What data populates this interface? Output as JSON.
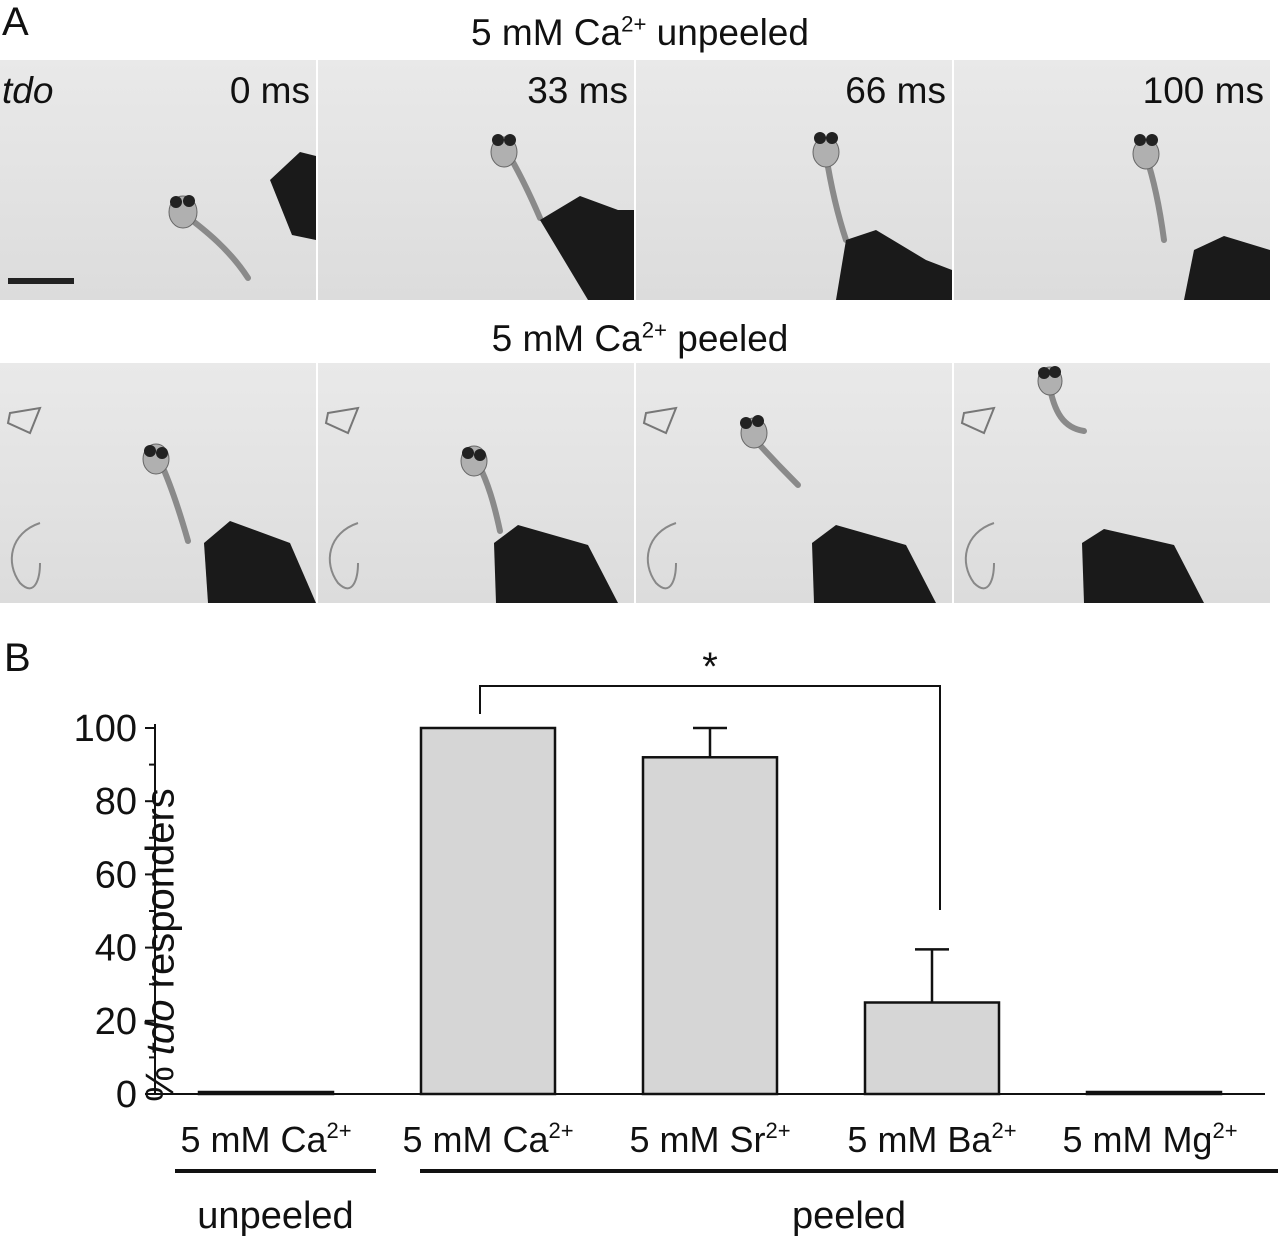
{
  "panel_a": {
    "letter": "A",
    "strain": "tdo",
    "rows": [
      {
        "title_pre": "5 mM Ca",
        "title_sup": "2+",
        "title_post": " unpeeled",
        "frames": [
          "0 ms",
          "33 ms",
          "66 ms",
          "100 ms"
        ]
      },
      {
        "title_pre": "5 mM Ca",
        "title_sup": "2+",
        "title_post": " peeled",
        "frames": [
          "",
          "",
          "",
          ""
        ]
      }
    ]
  },
  "chart_data": {
    "panel_letter": "B",
    "type": "bar",
    "categories": [
      {
        "pre": "5 mM Ca",
        "sup": "2+"
      },
      {
        "pre": "5 mM Ca",
        "sup": "2+"
      },
      {
        "pre": "5 mM Sr",
        "sup": "2+"
      },
      {
        "pre": "5 mM Ba",
        "sup": "2+"
      },
      {
        "pre": "5 mM Mg",
        "sup": "2+"
      }
    ],
    "values": [
      0,
      100,
      92,
      25,
      0
    ],
    "error_upper": [
      0,
      0,
      100,
      39.5,
      0
    ],
    "ylabel_pre": "% ",
    "ylabel_italic": "tdo",
    "ylabel_post": " responders",
    "ylim": [
      0,
      100
    ],
    "yticks": [
      0,
      20,
      40,
      60,
      80,
      100
    ],
    "groups": [
      {
        "label": "unpeeled",
        "from": 0,
        "to": 0
      },
      {
        "label": "peeled",
        "from": 1,
        "to": 4
      }
    ],
    "significance": {
      "from": 1,
      "to": 3,
      "label": "*"
    },
    "bar_color": "#d6d6d6"
  }
}
